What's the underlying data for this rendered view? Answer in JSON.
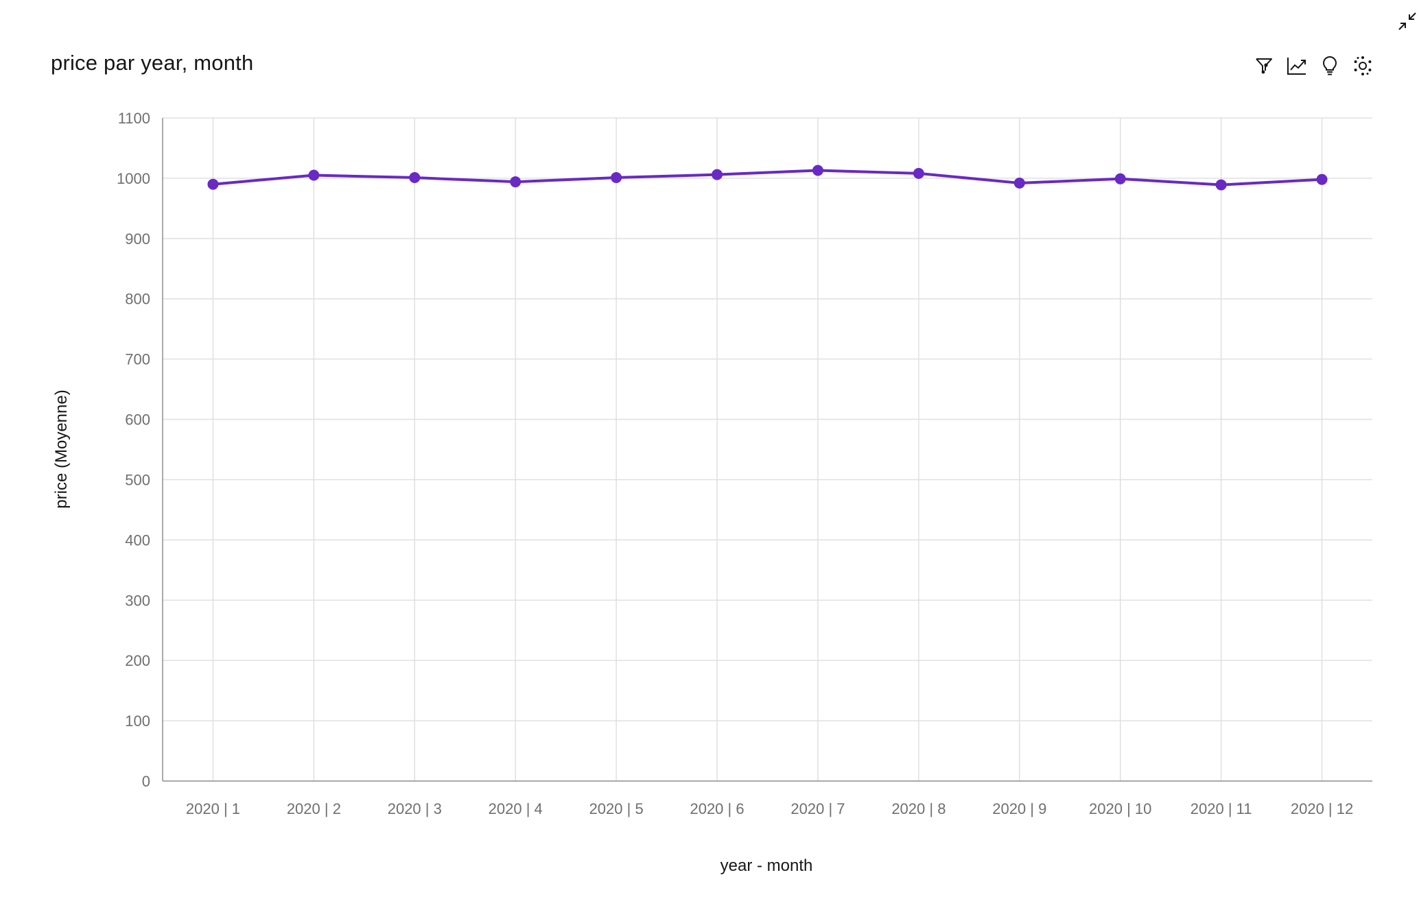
{
  "header": {
    "title": "price par year, month"
  },
  "toolbar": {
    "icons": [
      "filter-icon",
      "trend-line-icon",
      "lightbulb-icon",
      "explore-icon"
    ],
    "minimize_icon": "minimize-icon"
  },
  "colors": {
    "series": "#6929c4",
    "grid": "#e0e0e0",
    "axis": "#8d8d8d",
    "tick_text": "#6f6f6f",
    "text": "#161616"
  },
  "chart_data": {
    "type": "line",
    "title": "price par year, month",
    "xlabel": "year - month",
    "ylabel": "price (Moyenne)",
    "categories": [
      "2020 | 1",
      "2020 | 2",
      "2020 | 3",
      "2020 | 4",
      "2020 | 5",
      "2020 | 6",
      "2020 | 7",
      "2020 | 8",
      "2020 | 9",
      "2020 | 10",
      "2020 | 11",
      "2020 | 12"
    ],
    "series": [
      {
        "values": [
          990,
          1005,
          1001,
          994,
          1001,
          1006,
          1013,
          1008,
          992,
          999,
          989,
          998
        ]
      }
    ],
    "ylim": [
      0,
      1100
    ],
    "yticks": [
      0,
      100,
      200,
      300,
      400,
      500,
      600,
      700,
      800,
      900,
      1000,
      1100
    ],
    "grid": true,
    "legend": "none"
  }
}
